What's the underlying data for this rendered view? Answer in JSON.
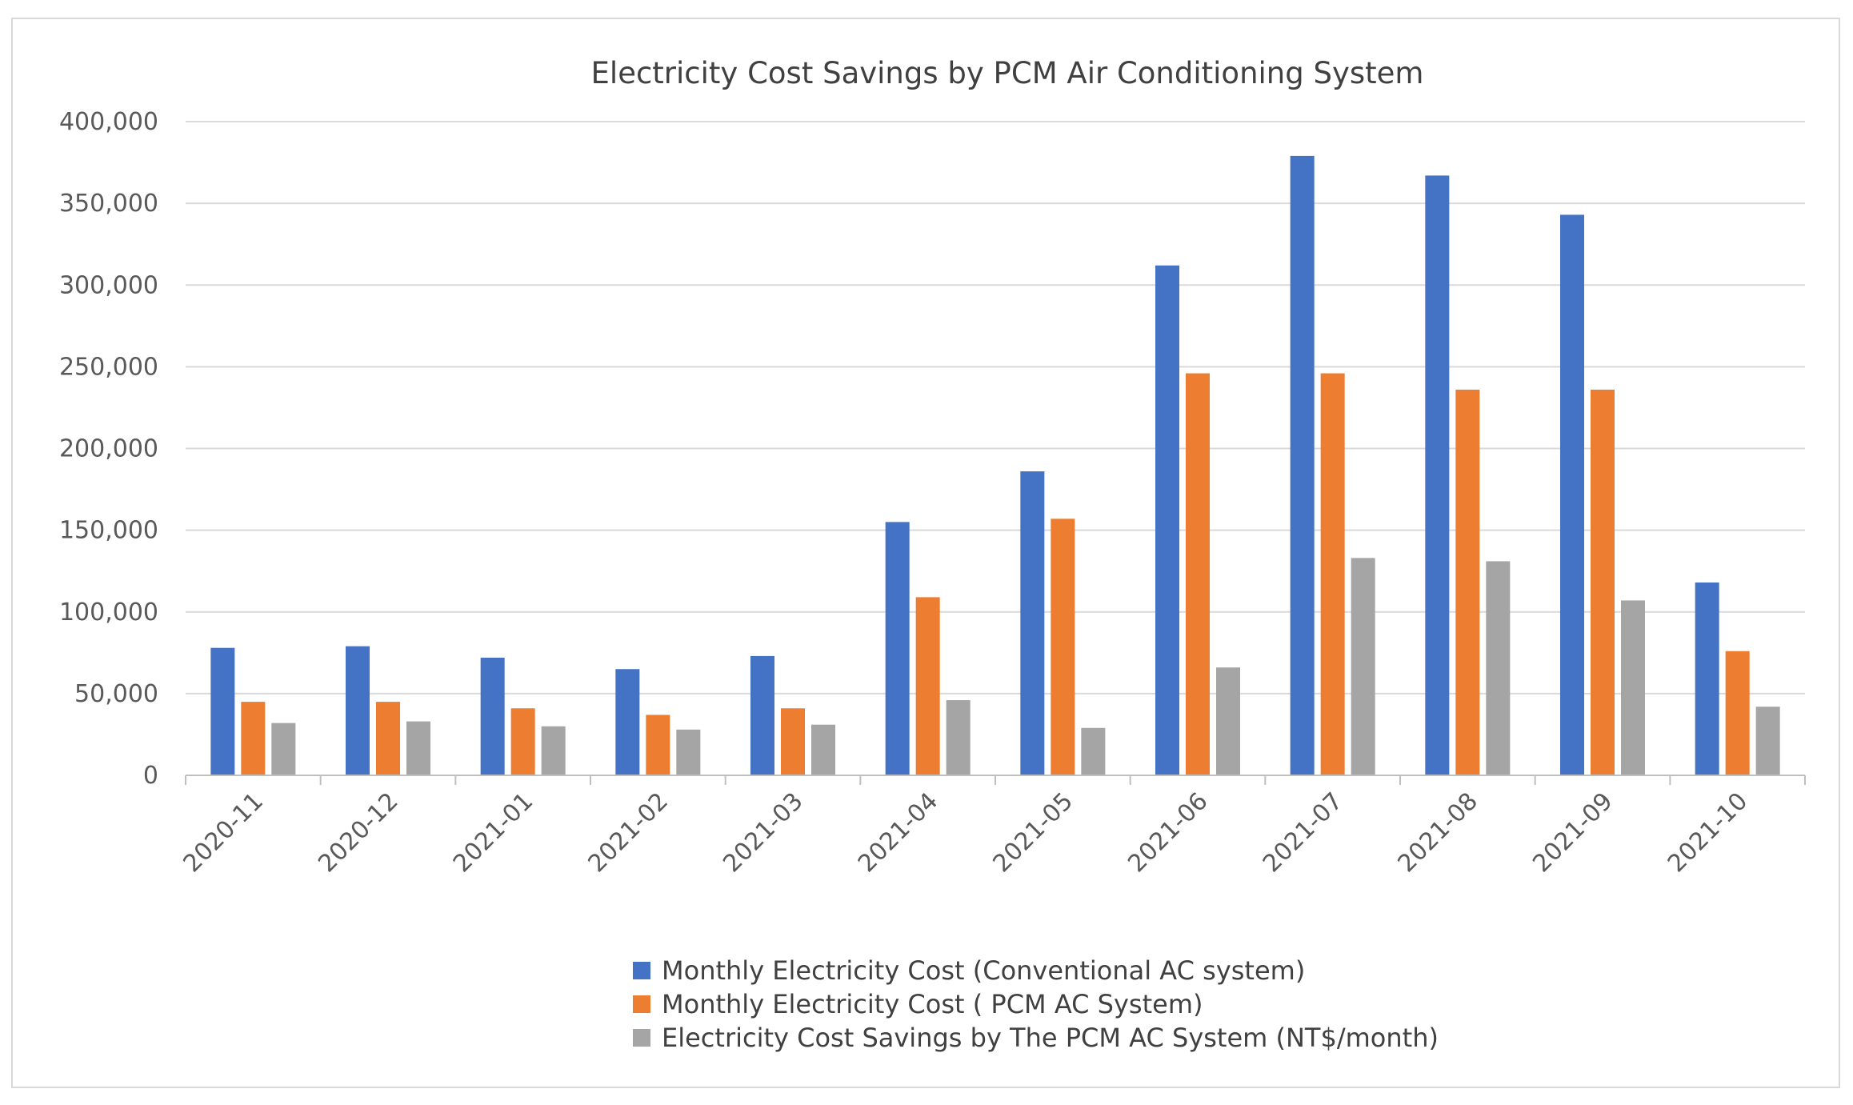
{
  "chart_data": {
    "type": "bar",
    "title": "Electricity Cost Savings by PCM Air Conditioning System",
    "xlabel": "",
    "ylabel": "",
    "ylim": [
      0,
      400000
    ],
    "yticks": [
      0,
      50000,
      100000,
      150000,
      200000,
      250000,
      300000,
      350000,
      400000
    ],
    "ytick_labels": [
      "0",
      "50,000",
      "100,000",
      "150,000",
      "200,000",
      "250,000",
      "300,000",
      "350,000",
      "400,000"
    ],
    "grid": "horizontal",
    "legend_position": "bottom",
    "categories": [
      "2020-11",
      "2020-12",
      "2021-01",
      "2021-02",
      "2021-03",
      "2021-04",
      "2021-05",
      "2021-06",
      "2021-07",
      "2021-08",
      "2021-09",
      "2021-10"
    ],
    "series": [
      {
        "name": "Monthly Electricity Cost (Conventional AC system)",
        "color": "#4472c4",
        "values": [
          78000,
          79000,
          72000,
          65000,
          73000,
          155000,
          186000,
          312000,
          379000,
          367000,
          343000,
          118000
        ]
      },
      {
        "name": "Monthly Electricity Cost ( PCM AC System)",
        "color": "#ed7d31",
        "values": [
          45000,
          45000,
          41000,
          37000,
          41000,
          109000,
          157000,
          246000,
          246000,
          236000,
          236000,
          76000
        ]
      },
      {
        "name": "Electricity Cost Savings by The PCM AC System (NT$/month)",
        "color": "#a5a5a5",
        "values": [
          32000,
          33000,
          30000,
          28000,
          31000,
          46000,
          29000,
          66000,
          133000,
          131000,
          107000,
          42000
        ]
      }
    ]
  }
}
